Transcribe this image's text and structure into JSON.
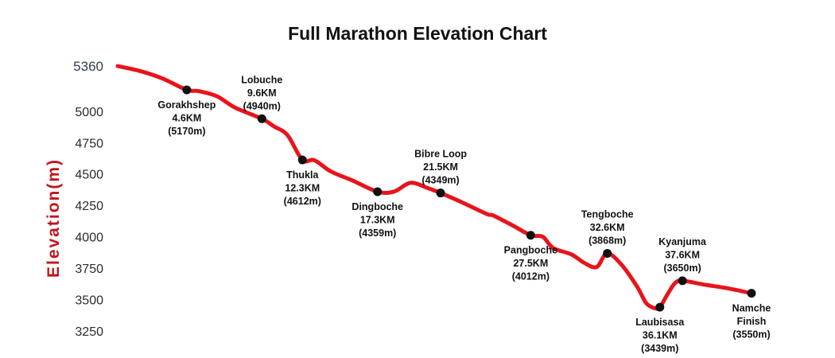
{
  "chart_data": {
    "type": "line",
    "title": "Full Marathon Elevation Chart",
    "ylabel": "Elevation(m)",
    "xlabel": "",
    "yticks": [
      "5360",
      "5000",
      "4750",
      "4500",
      "4250",
      "4000",
      "3750",
      "3500",
      "3250"
    ],
    "ylim": [
      3250,
      5360
    ],
    "xlim": [
      0,
      42.2
    ],
    "grid": false,
    "colors": {
      "line": "#e8141b",
      "marker": "#111111",
      "ylabel": "#c2151b"
    },
    "profile": [
      {
        "x": 0.0,
        "y": 5360
      },
      {
        "x": 1.5,
        "y": 5320
      },
      {
        "x": 3.0,
        "y": 5260
      },
      {
        "x": 4.6,
        "y": 5170
      },
      {
        "x": 5.4,
        "y": 5160
      },
      {
        "x": 6.6,
        "y": 5120
      },
      {
        "x": 7.8,
        "y": 5030
      },
      {
        "x": 9.6,
        "y": 4940
      },
      {
        "x": 10.4,
        "y": 4880
      },
      {
        "x": 11.3,
        "y": 4810
      },
      {
        "x": 12.3,
        "y": 4612
      },
      {
        "x": 13.1,
        "y": 4610
      },
      {
        "x": 14.2,
        "y": 4520
      },
      {
        "x": 15.6,
        "y": 4450
      },
      {
        "x": 17.3,
        "y": 4359
      },
      {
        "x": 18.4,
        "y": 4360
      },
      {
        "x": 19.5,
        "y": 4430
      },
      {
        "x": 20.6,
        "y": 4390
      },
      {
        "x": 21.5,
        "y": 4349
      },
      {
        "x": 23.0,
        "y": 4270
      },
      {
        "x": 24.6,
        "y": 4180
      },
      {
        "x": 25.0,
        "y": 4170
      },
      {
        "x": 26.3,
        "y": 4090
      },
      {
        "x": 27.5,
        "y": 4012
      },
      {
        "x": 28.3,
        "y": 4000
      },
      {
        "x": 29.0,
        "y": 3910
      },
      {
        "x": 30.2,
        "y": 3860
      },
      {
        "x": 31.1,
        "y": 3790
      },
      {
        "x": 31.9,
        "y": 3760
      },
      {
        "x": 32.6,
        "y": 3868
      },
      {
        "x": 33.6,
        "y": 3770
      },
      {
        "x": 34.6,
        "y": 3600
      },
      {
        "x": 35.2,
        "y": 3470
      },
      {
        "x": 35.8,
        "y": 3430
      },
      {
        "x": 36.1,
        "y": 3439
      },
      {
        "x": 36.6,
        "y": 3540
      },
      {
        "x": 37.1,
        "y": 3630
      },
      {
        "x": 37.6,
        "y": 3650
      },
      {
        "x": 39.0,
        "y": 3620
      },
      {
        "x": 40.6,
        "y": 3590
      },
      {
        "x": 42.2,
        "y": 3550
      }
    ],
    "checkpoints": [
      {
        "name": "Gorakhshep",
        "km": "4.6KM",
        "elev": "(5170m)",
        "x": 4.6,
        "y": 5170,
        "label_pos": "below"
      },
      {
        "name": "Lobuche",
        "km": "9.6KM",
        "elev": "(4940m)",
        "x": 9.6,
        "y": 4940,
        "label_pos": "above"
      },
      {
        "name": "Thukla",
        "km": "12.3KM",
        "elev": "(4612m)",
        "x": 12.3,
        "y": 4612,
        "label_pos": "below"
      },
      {
        "name": "Dingboche",
        "km": "17.3KM",
        "elev": "(4359m)",
        "x": 17.3,
        "y": 4359,
        "label_pos": "below"
      },
      {
        "name": "Bibre Loop",
        "km": "21.5KM",
        "elev": "(4349m)",
        "x": 21.5,
        "y": 4349,
        "label_pos": "above"
      },
      {
        "name": "Pangboche",
        "km": "27.5KM",
        "elev": "(4012m)",
        "x": 27.5,
        "y": 4012,
        "label_pos": "below"
      },
      {
        "name": "Tengboche",
        "km": "32.6KM",
        "elev": "(3868m)",
        "x": 32.6,
        "y": 3868,
        "label_pos": "above"
      },
      {
        "name": "Laubisasa",
        "km": "36.1KM",
        "elev": "(3439m)",
        "x": 36.1,
        "y": 3439,
        "label_pos": "below"
      },
      {
        "name": "Kyanjuma",
        "km": "37.6KM",
        "elev": "(3650m)",
        "x": 37.6,
        "y": 3650,
        "label_pos": "above"
      },
      {
        "name": "Namche\nFinish",
        "km": "",
        "elev": "(3550m)",
        "x": 42.2,
        "y": 3550,
        "label_pos": "below"
      }
    ]
  }
}
